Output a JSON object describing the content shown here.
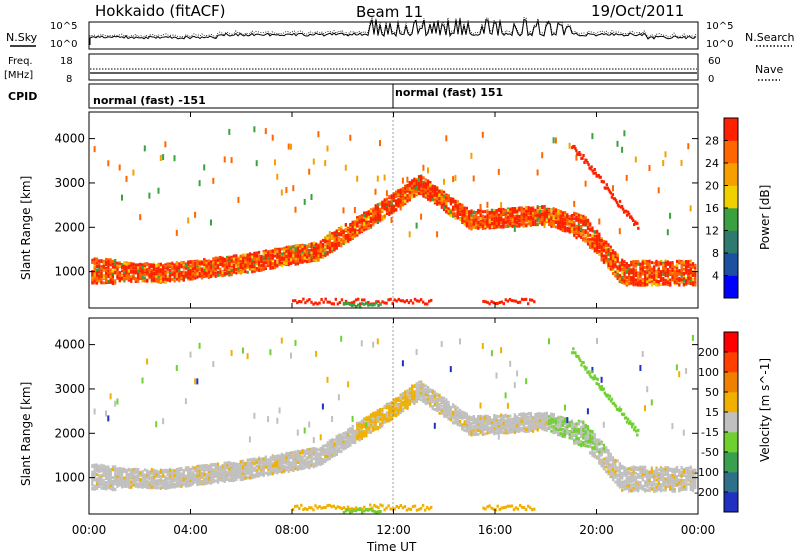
{
  "header": {
    "station": "Hokkaido (fitACF)",
    "beam": "Beam 11",
    "date": "19/Oct/2011"
  },
  "top_panels": {
    "nsky_label": "N.Sky",
    "nsearch_label": "N.Search",
    "count_ticks_left": [
      "10^5",
      "10^0"
    ],
    "count_ticks_right": [
      "10^5",
      "10^0"
    ],
    "freq_label_1": "Freq.",
    "freq_label_2": "[MHz]",
    "freq_ticks": [
      "18",
      "8"
    ],
    "nave_label": "Nave",
    "nave_ticks": [
      "60",
      "0"
    ],
    "cpid_label": "CPID",
    "cpid_segments": [
      {
        "label": "normal (fast) -151",
        "start_hour": 0,
        "end_hour": 12
      },
      {
        "label": "normal (fast) 151",
        "start_hour": 12,
        "end_hour": 24
      }
    ]
  },
  "x_axis": {
    "label": "Time UT",
    "ticks": [
      "00:00",
      "04:00",
      "08:00",
      "12:00",
      "16:00",
      "20:00",
      "00:00"
    ],
    "range_hours": [
      0,
      24
    ]
  },
  "chart_data": [
    {
      "type": "heatmap",
      "name": "power",
      "ylabel": "Slant Range [km]",
      "yticks": [
        1000,
        2000,
        3000,
        4000
      ],
      "ylim": [
        180,
        4600
      ],
      "xlim": [
        0,
        24
      ],
      "colorbar_label": "Power [dB]",
      "colorbar_ticks": [
        4,
        8,
        12,
        16,
        20,
        24,
        28
      ],
      "colorbar_colors": [
        "#0000ff",
        "#1e50a0",
        "#2e7a6e",
        "#3aa040",
        "#f0d000",
        "#f6a000",
        "#ff6600",
        "#ff2000"
      ],
      "scatter_bands": [
        {
          "desc": "main F-region band",
          "t": [
            0,
            3,
            6,
            9,
            11.5,
            13,
            15,
            18,
            19.5,
            21,
            24
          ],
          "r": [
            1050,
            1000,
            1200,
            1500,
            2400,
            3000,
            2200,
            2300,
            2000,
            1000,
            1000
          ]
        }
      ]
    },
    {
      "type": "heatmap",
      "name": "velocity",
      "ylabel": "Slant Range [km]",
      "yticks": [
        1000,
        2000,
        3000,
        4000
      ],
      "ylim": [
        180,
        4600
      ],
      "xlim": [
        0,
        24
      ],
      "colorbar_label": "Velocity [m s^-1]",
      "colorbar_ticks": [
        200,
        100,
        50,
        15,
        -15,
        -50,
        -100,
        -200
      ],
      "colorbar_colors": [
        "#2030c0",
        "#2e6f8a",
        "#3aa050",
        "#70d030",
        "#c0c0c0",
        "#f0b000",
        "#f08000",
        "#ff4000",
        "#ff0000"
      ]
    }
  ]
}
